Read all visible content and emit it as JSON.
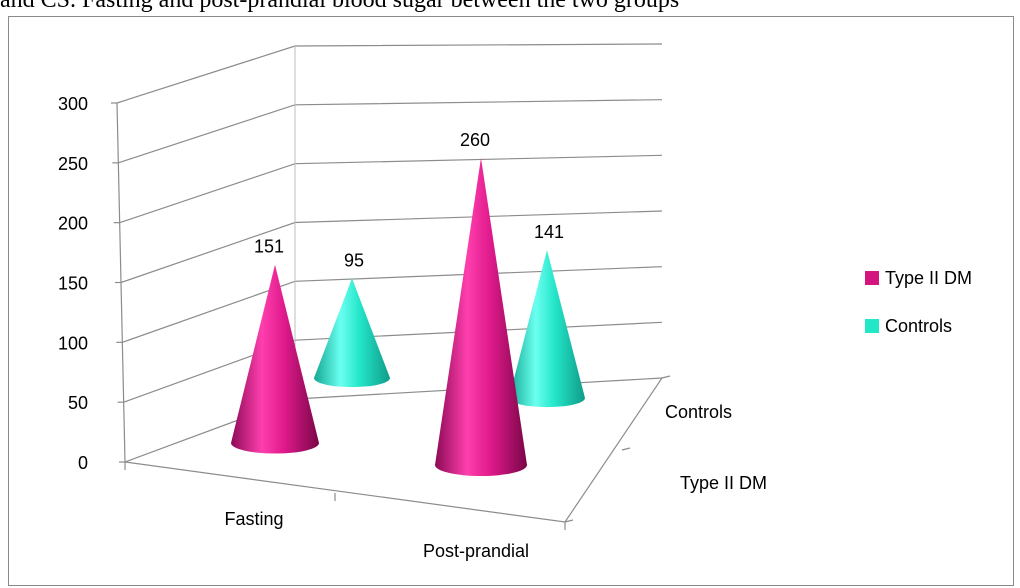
{
  "caption": "and CS. Fasting and post-prandial blood sugar between the two groups",
  "chart_data": {
    "type": "bar",
    "shape": "cone-3d",
    "categories": [
      "Fasting",
      "Post-prandial"
    ],
    "depth_categories": [
      "Type II DM",
      "Controls"
    ],
    "series": [
      {
        "name": "Type II DM",
        "values": [
          151,
          260
        ],
        "color": "#d4147f"
      },
      {
        "name": "Controls",
        "values": [
          95,
          141
        ],
        "color": "#22e8c8"
      }
    ],
    "ylim": [
      0,
      300
    ],
    "yticks": [
      0,
      50,
      100,
      150,
      200,
      250,
      300
    ],
    "legend": "right",
    "grid": true
  }
}
